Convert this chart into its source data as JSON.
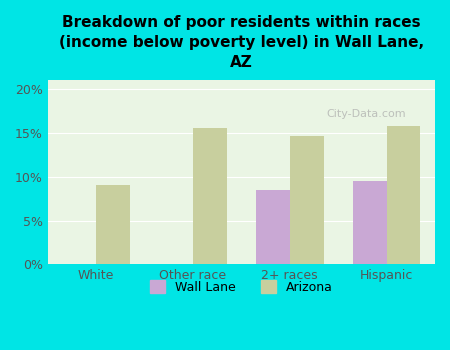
{
  "title": "Breakdown of poor residents within races\n(income below poverty level) in Wall Lane,\nAZ",
  "categories": [
    "White",
    "Other race",
    "2+ races",
    "Hispanic"
  ],
  "wall_lane_values": [
    null,
    null,
    8.5,
    9.5
  ],
  "arizona_values": [
    9.1,
    15.6,
    14.7,
    15.8
  ],
  "wall_lane_color": "#c9a8d4",
  "arizona_color": "#c8cf9e",
  "background_color": "#00e5e5",
  "plot_bg_color": "#eaf5e4",
  "yticks": [
    0,
    5,
    10,
    15,
    20
  ],
  "ylim": [
    0,
    21
  ],
  "bar_width": 0.35,
  "watermark": "City-Data.com"
}
